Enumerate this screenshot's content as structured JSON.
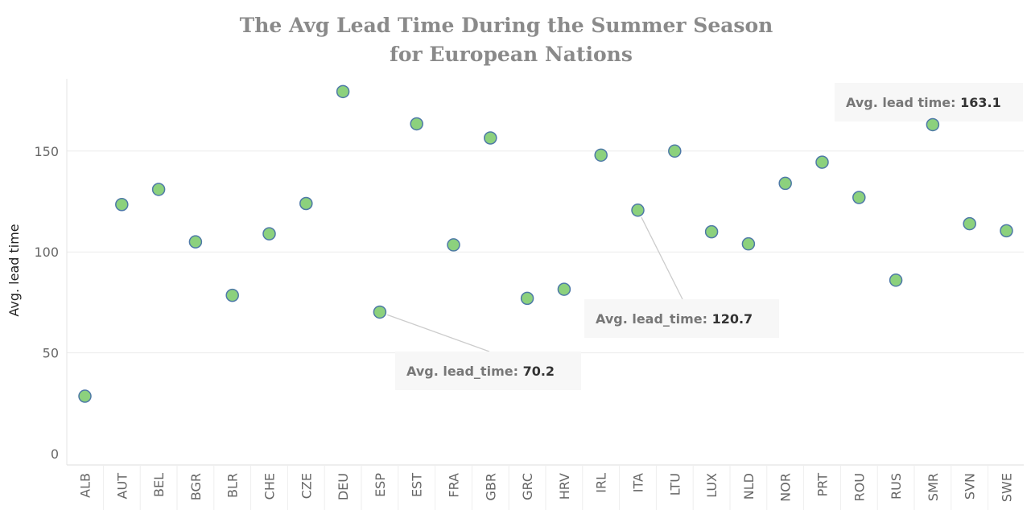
{
  "chart_data": {
    "type": "scatter",
    "title_line1": "The Avg Lead Time During the Summer Season",
    "title_line2": "for European Nations",
    "xlabel": "",
    "ylabel": "Avg. lead time",
    "ylim": [
      -5,
      190
    ],
    "yticks": [
      0,
      50,
      100,
      150
    ],
    "grid": true,
    "categories": [
      "ALB",
      "AUT",
      "BEL",
      "BGR",
      "BLR",
      "CHE",
      "CZE",
      "DEU",
      "ESP",
      "EST",
      "FRA",
      "GBR",
      "GRC",
      "HRV",
      "IRL",
      "ITA",
      "LTU",
      "LUX",
      "NLD",
      "NOR",
      "PRT",
      "ROU",
      "RUS",
      "SMR",
      "SVN",
      "SWE"
    ],
    "values": [
      28.5,
      123.5,
      131,
      105,
      78.5,
      109,
      124,
      179.5,
      70.2,
      163.5,
      103.5,
      156.5,
      77,
      81.5,
      148,
      120.7,
      150,
      110,
      104,
      134,
      144.5,
      127,
      86,
      163.1,
      114,
      110.5
    ],
    "marker_color": "#8cd17d",
    "marker_edge_color": "#4e79a7",
    "annotations": [
      {
        "category": "ESP",
        "label": "Avg. lead_time:",
        "value": "70.2"
      },
      {
        "category": "ITA",
        "label": "Avg. lead_time:",
        "value": "120.7"
      },
      {
        "category": "SMR",
        "label": "Avg. lead  time:",
        "value": "163.1"
      }
    ]
  }
}
